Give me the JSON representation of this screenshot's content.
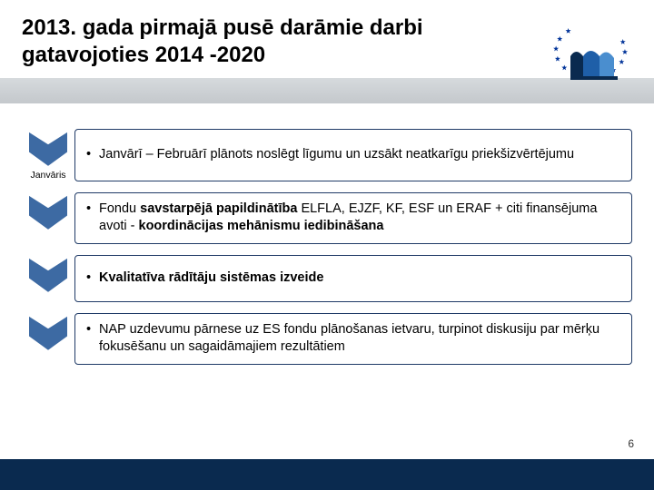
{
  "title": "2013. gada pirmajā pusē darāmie darbi gatavojoties 2014 -2020",
  "page_number": "6",
  "colors": {
    "arrow_fill": "#3d6aa3",
    "arrow_stroke": "#ffffff",
    "box_border": "#1f3a66",
    "grey_band_top": "#d6dadd",
    "grey_band_bottom": "#c4c8cc",
    "footer": "#0a2a4f",
    "eu_blue": "#003399",
    "eu_gold": "#ffcc00"
  },
  "logo": {
    "type": "eu-stars-plus-mark",
    "star_count": 12
  },
  "rows": [
    {
      "arrow_label": "Janvāris",
      "bullet_html": "Janvārī – Februārī plānots noslēgt līgumu un uzsākt neatkarīgu priekšizvērtējumu"
    },
    {
      "arrow_label": "",
      "bullet_html": "Fondu <b>savstarpējā papildinātība</b> ELFLA, EJZF, KF, ESF un ERAF + citi finansējuma avoti - <b>koordinācijas mehānismu iedibināšana</b>"
    },
    {
      "arrow_label": "",
      "bullet_html": "<b>Kvalitatīva rādītāju sistēmas izveide</b>"
    },
    {
      "arrow_label": "",
      "bullet_html": "NAP uzdevumu pārnese uz ES fondu plānošanas ietvaru, turpinot diskusiju par mērķu fokusēšanu un sagaidāmajiem rezultātiem"
    }
  ]
}
